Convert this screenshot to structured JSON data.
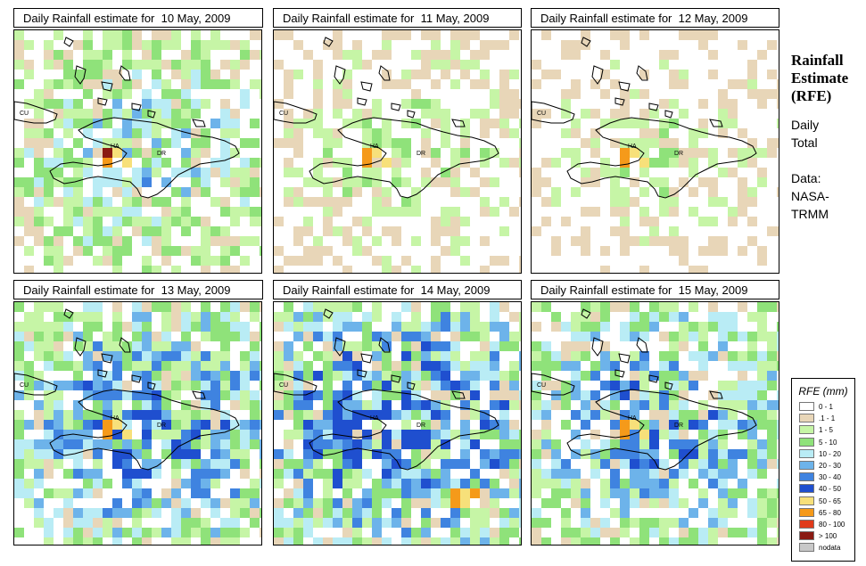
{
  "panels": [
    {
      "title": "Daily Rainfall estimate for  10 May, 2009",
      "intensity": 0.55,
      "seed": 11,
      "hot": "HA"
    },
    {
      "title": "Daily Rainfall estimate for  11 May, 2009",
      "intensity": 0.35,
      "seed": 23,
      "hot": "HA"
    },
    {
      "title": "Daily Rainfall estimate for  12 May, 2009",
      "intensity": 0.3,
      "seed": 37,
      "hot": "HA"
    },
    {
      "title": "Daily Rainfall estimate for  13 May, 2009",
      "intensity": 0.8,
      "seed": 41,
      "hot": "HA"
    },
    {
      "title": "Daily Rainfall estimate for  14 May, 2009",
      "intensity": 0.9,
      "seed": 53,
      "hot": "SOUTH"
    },
    {
      "title": "Daily Rainfall estimate for  15 May, 2009",
      "intensity": 0.75,
      "seed": 67,
      "hot": "HA"
    }
  ],
  "place_labels": {
    "cuba": "CU",
    "haiti": "HA",
    "dominican_republic": "DR"
  },
  "sidebar": {
    "title": "Rainfall Estimate (RFE)",
    "period_line1": "Daily",
    "period_line2": "Total",
    "data_line1": "Data:",
    "data_line2": "NASA-",
    "data_line3": "TRMM"
  },
  "legend": {
    "title": "RFE (mm)",
    "items": [
      {
        "label": "0 - 1",
        "color": "#ffffff"
      },
      {
        "label": ".1 - 1",
        "color": "#e8d6b8"
      },
      {
        "label": "1 - 5",
        "color": "#c6f5a6"
      },
      {
        "label": "5 - 10",
        "color": "#8fe27a"
      },
      {
        "label": "10 - 20",
        "color": "#b9ecf5"
      },
      {
        "label": "20 - 30",
        "color": "#6db3ea"
      },
      {
        "label": "30 - 40",
        "color": "#3f83e0"
      },
      {
        "label": "40 - 50",
        "color": "#1f4fcf"
      },
      {
        "label": "50 - 65",
        "color": "#f7e07a"
      },
      {
        "label": "65 - 80",
        "color": "#f59a1a"
      },
      {
        "label": "80 - 100",
        "color": "#e03a1a"
      },
      {
        "label": "> 100",
        "color": "#8a1a12"
      },
      {
        "label": "nodata",
        "color": "#c8c8c8"
      }
    ]
  }
}
